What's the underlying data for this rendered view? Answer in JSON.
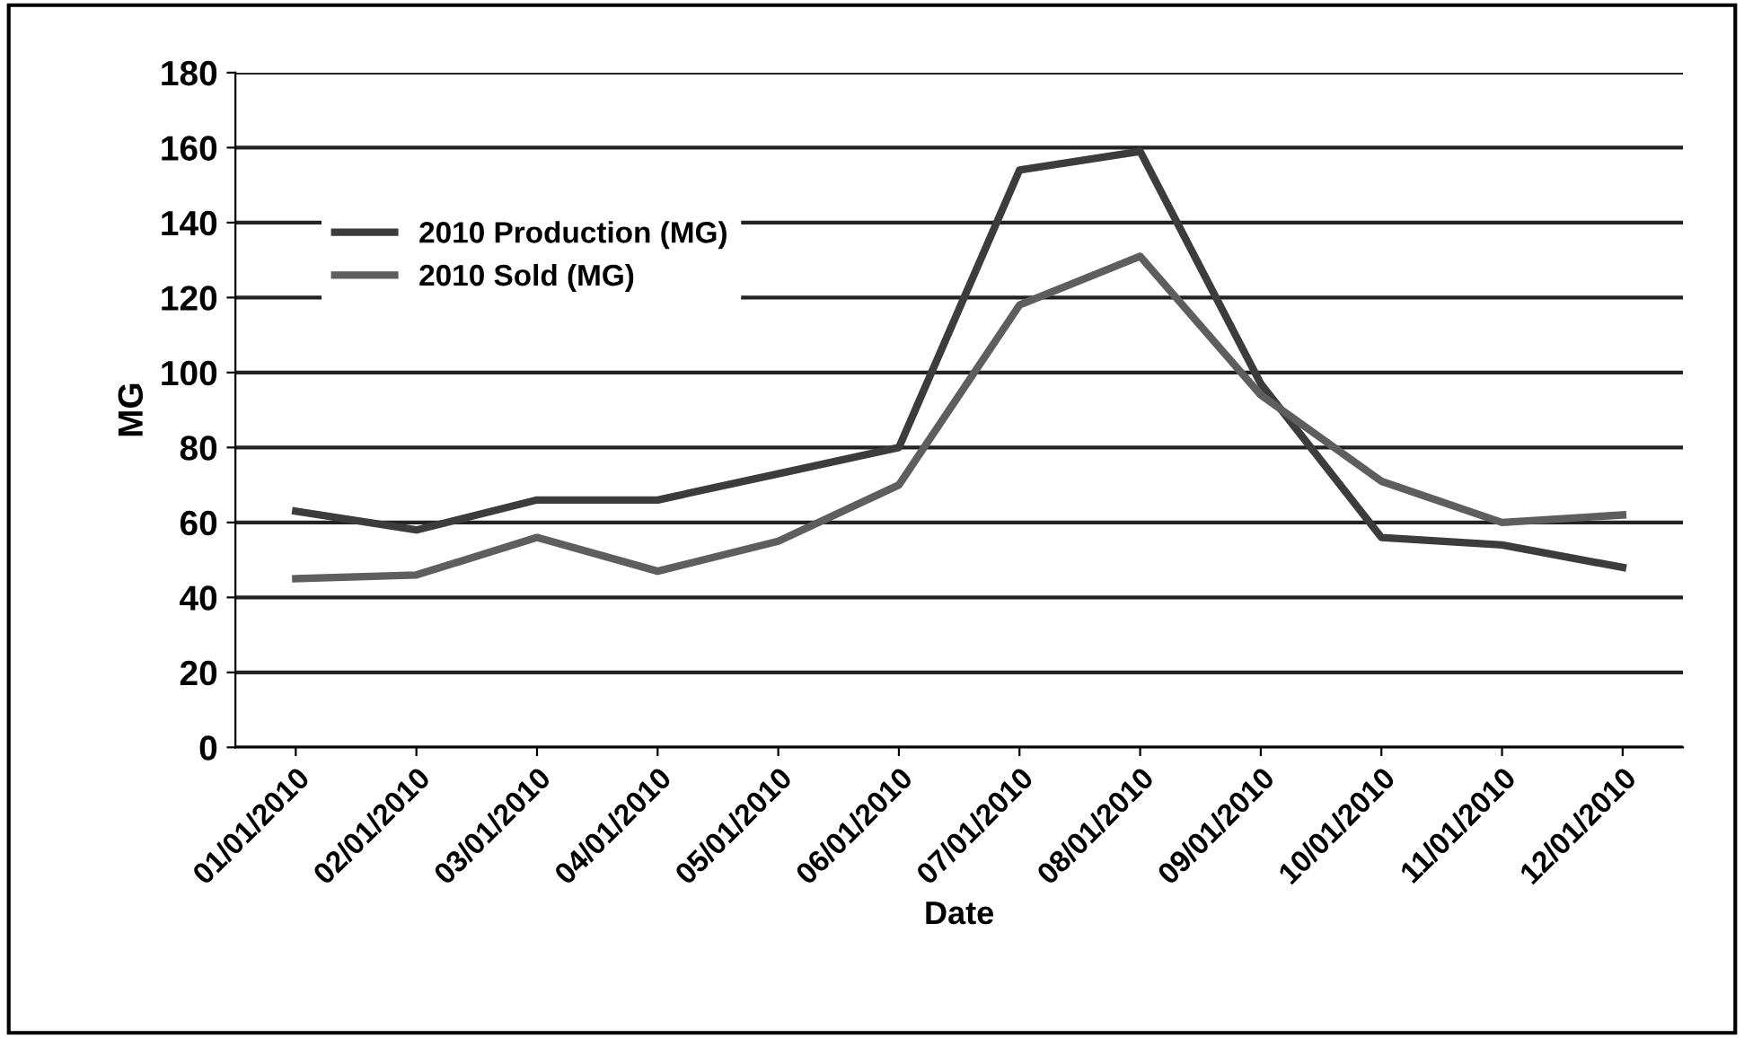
{
  "chart_data": {
    "type": "line",
    "xlabel": "Date",
    "ylabel": "MG",
    "categories": [
      "01/01/2010",
      "02/01/2010",
      "03/01/2010",
      "04/01/2010",
      "05/01/2010",
      "06/01/2010",
      "07/01/2010",
      "08/01/2010",
      "09/01/2010",
      "10/01/2010",
      "11/01/2010",
      "12/01/2010"
    ],
    "series": [
      {
        "name": "2010 Production (MG)",
        "color": "#3c3c3c",
        "values": [
          63,
          58,
          66,
          66,
          73,
          80,
          154,
          159,
          97,
          56,
          54,
          48
        ]
      },
      {
        "name": "2010 Sold (MG)",
        "color": "#5e5e5e",
        "values": [
          45,
          46,
          56,
          47,
          55,
          70,
          118,
          131,
          94,
          71,
          60,
          62
        ]
      }
    ],
    "ylim": [
      0,
      180
    ],
    "yticks": [
      0,
      20,
      40,
      60,
      80,
      100,
      120,
      140,
      160,
      180
    ],
    "grid": "y",
    "legend": "top left",
    "marker": "none",
    "line_style": "solid"
  }
}
